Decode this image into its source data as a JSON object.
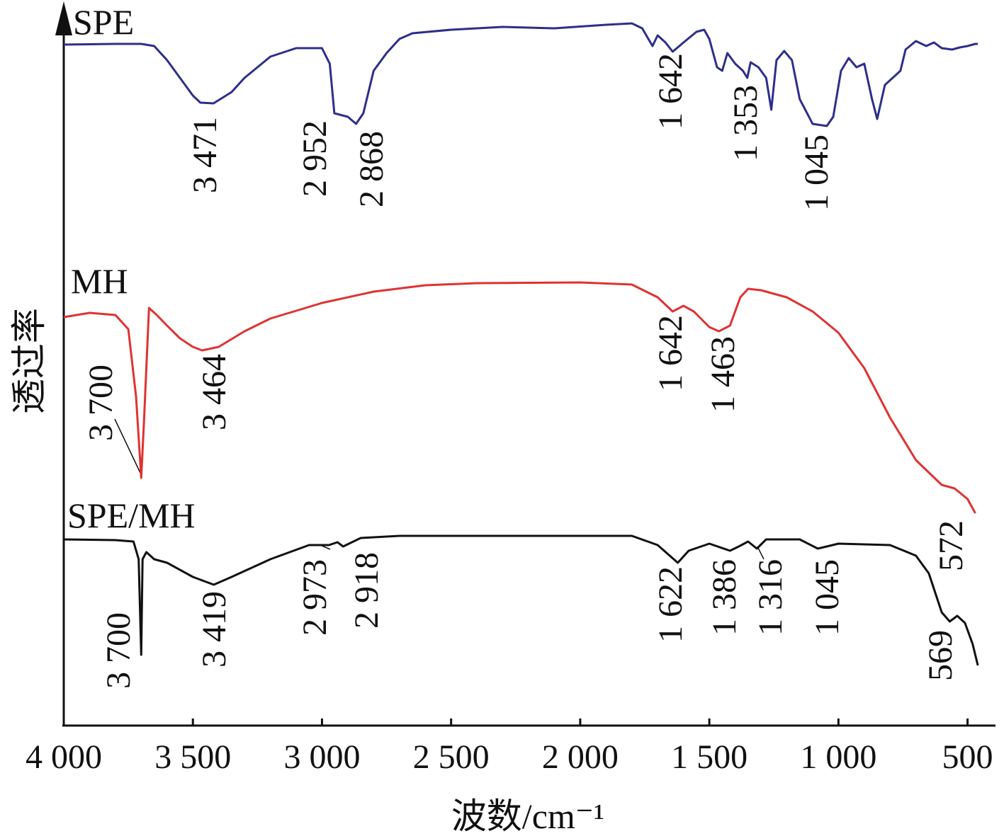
{
  "chart_data": {
    "type": "line",
    "xlabel": "波数/cm⁻¹",
    "ylabel": "透过率",
    "xlim": [
      4000,
      400
    ],
    "ylim": [
      0,
      101.5
    ],
    "xticks": [
      {
        "value": 4000,
        "label": "4 000"
      },
      {
        "value": 3500,
        "label": "3 500"
      },
      {
        "value": 3000,
        "label": "3 000"
      },
      {
        "value": 2500,
        "label": "2 500"
      },
      {
        "value": 2000,
        "label": "2 000"
      },
      {
        "value": 1500,
        "label": "1 500"
      },
      {
        "value": 1000,
        "label": "1 000"
      },
      500
    ],
    "series": [
      {
        "name": "SPE",
        "color": "#2e2e8c",
        "x": [
          4000,
          3800,
          3700,
          3650,
          3600,
          3550,
          3500,
          3471,
          3420,
          3350,
          3300,
          3200,
          3100,
          3000,
          2970,
          2952,
          2900,
          2868,
          2840,
          2800,
          2750,
          2700,
          2650,
          2500,
          2300,
          2100,
          1900,
          1800,
          1760,
          1720,
          1700,
          1670,
          1642,
          1600,
          1550,
          1520,
          1500,
          1470,
          1450,
          1430,
          1400,
          1370,
          1353,
          1340,
          1310,
          1280,
          1260,
          1240,
          1210,
          1180,
          1150,
          1100,
          1045,
          1020,
          990,
          960,
          930,
          900,
          870,
          850,
          820,
          790,
          760,
          740,
          700,
          660,
          630,
          600,
          560,
          530,
          500,
          470,
          460
        ],
        "values": [
          96.2,
          96.3,
          96.3,
          96.0,
          94.0,
          91.5,
          89.0,
          88.0,
          87.9,
          89.5,
          91.5,
          94.5,
          95.7,
          95.7,
          93.5,
          86.5,
          86.0,
          85.0,
          86.5,
          92.5,
          95.0,
          97.0,
          97.8,
          98.3,
          98.7,
          98.5,
          99.0,
          99.2,
          98.5,
          96.0,
          97.5,
          96.5,
          95.2,
          96.5,
          98.0,
          98.3,
          97.0,
          93.0,
          92.5,
          95.0,
          93.5,
          92.5,
          91.5,
          93.7,
          93.0,
          91.5,
          87.0,
          94.0,
          95.3,
          94.0,
          88.5,
          85.0,
          84.7,
          86.0,
          92.5,
          94.3,
          93.0,
          93.5,
          88.5,
          85.7,
          90.5,
          91.5,
          92.5,
          95.5,
          96.7,
          96.0,
          96.5,
          95.7,
          95.5,
          95.8,
          96.0,
          96.3,
          96.3
        ],
        "peak_labels": [
          "3 471",
          "2 952",
          "2 868",
          "1 642",
          "1 353",
          "1 045"
        ]
      },
      {
        "name": "MH",
        "color": "#e03232",
        "x": [
          4000,
          3900,
          3800,
          3750,
          3720,
          3700,
          3690,
          3670,
          3640,
          3600,
          3550,
          3500,
          3464,
          3400,
          3300,
          3200,
          3000,
          2800,
          2600,
          2400,
          2000,
          1800,
          1700,
          1642,
          1600,
          1560,
          1500,
          1463,
          1420,
          1380,
          1350,
          1300,
          1200,
          1100,
          1000,
          900,
          800,
          700,
          600,
          550,
          500,
          470
        ],
        "values": [
          57.7,
          58.3,
          58.0,
          56.0,
          46.5,
          35.0,
          42.5,
          59.0,
          58.0,
          56.5,
          54.7,
          53.5,
          53.0,
          53.5,
          55.7,
          57.5,
          59.7,
          61.3,
          62.2,
          62.5,
          62.6,
          62.3,
          60.5,
          58.5,
          59.3,
          58.5,
          56.3,
          55.7,
          56.5,
          60.5,
          61.7,
          61.5,
          60.5,
          58.5,
          55.5,
          50.5,
          43.5,
          37.5,
          34.0,
          33.5,
          32.0,
          30.0
        ],
        "peak_labels": [
          "3 700",
          "3 464",
          "1 642",
          "1 463"
        ]
      },
      {
        "name": "SPE/MH",
        "color": "#111111",
        "x": [
          4000,
          3800,
          3730,
          3710,
          3700,
          3695,
          3680,
          3650,
          3600,
          3500,
          3419,
          3350,
          3200,
          3050,
          2973,
          2940,
          2918,
          2850,
          2700,
          2000,
          1800,
          1700,
          1622,
          1580,
          1500,
          1420,
          1386,
          1350,
          1316,
          1280,
          1150,
          1080,
          1045,
          1000,
          800,
          700,
          650,
          600,
          569,
          540,
          510,
          480,
          460
        ],
        "values": [
          26.3,
          26.2,
          26.0,
          23.5,
          10.0,
          23.5,
          24.5,
          23.5,
          23.0,
          21.0,
          19.9,
          21.0,
          23.5,
          25.5,
          25.5,
          25.9,
          25.3,
          26.5,
          26.8,
          26.8,
          26.8,
          25.5,
          23.0,
          24.7,
          25.7,
          24.7,
          25.3,
          26.0,
          25.0,
          26.3,
          26.3,
          25.0,
          25.3,
          25.7,
          25.5,
          24.0,
          21.5,
          16.0,
          14.7,
          15.5,
          14.5,
          11.5,
          8.5
        ],
        "peak_labels": [
          "3 700",
          "3 419",
          "2 973",
          "2 918",
          "1 622",
          "1 386",
          "1 316",
          "1 045",
          "572",
          "569"
        ]
      }
    ]
  }
}
